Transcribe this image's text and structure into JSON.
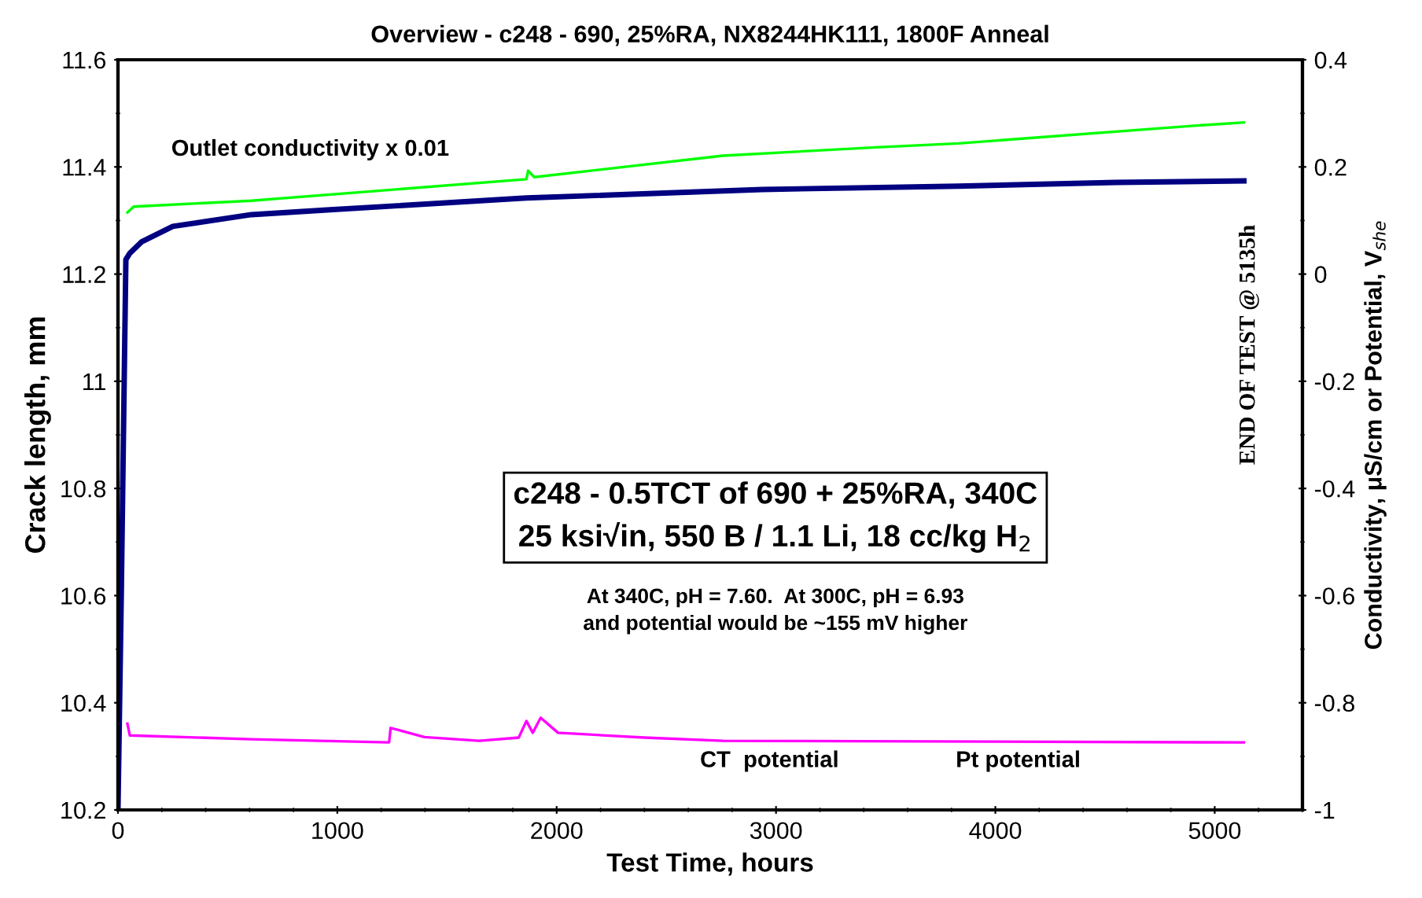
{
  "chart_data": {
    "type": "line",
    "title": "Overview - c248 - 690, 25%RA, NX8244HK111, 1800F Anneal",
    "xlabel": "Test Time, hours",
    "ylabel": "Crack length, mm",
    "y2label": "Conductivity, μS/cm or Potential, V$_{she}$",
    "xlim": [
      0,
      5400
    ],
    "xticks": [
      0,
      1000,
      2000,
      3000,
      4000,
      5000
    ],
    "ylim": [
      10.2,
      11.6
    ],
    "yticks": [
      10.2,
      10.4,
      10.6,
      10.8,
      11,
      11.2,
      11.4,
      11.6
    ],
    "y2lim": [
      -1,
      0.4
    ],
    "y2ticks": [
      -1,
      -0.8,
      -0.6,
      -0.4,
      -0.2,
      0,
      0.2,
      0.4
    ],
    "grid": false,
    "marker": "none",
    "line_style": "solid",
    "series": [
      {
        "color": "#000080",
        "x": [
          0,
          15,
          30,
          36,
          54,
          107,
          250,
          609,
          967,
          1862,
          2937,
          3832,
          4549,
          5133
        ],
        "values": [
          10.2,
          10.6,
          11.05,
          11.227,
          11.239,
          11.26,
          11.289,
          11.311,
          11.32,
          11.342,
          11.358,
          11.364,
          11.371,
          11.374
        ]
      },
      {
        "color": "#00ff00",
        "axis": "y2",
        "x": [
          43,
          72,
          609,
          1862,
          1870,
          1898,
          2758,
          3474,
          3832,
          4907,
          5133
        ],
        "values": [
          0.115,
          0.126,
          0.137,
          0.177,
          0.193,
          0.181,
          0.221,
          0.237,
          0.244,
          0.277,
          0.283
        ]
      },
      {
        "color": "#ff00ff",
        "axis": "y2",
        "x": [
          43,
          54,
          609,
          1236,
          1243,
          1397,
          1648,
          1827,
          1862,
          1891,
          1927,
          2006,
          2400,
          2758,
          5133
        ],
        "values": [
          -0.839,
          -0.861,
          -0.868,
          -0.874,
          -0.847,
          -0.864,
          -0.871,
          -0.865,
          -0.834,
          -0.856,
          -0.828,
          -0.856,
          -0.865,
          -0.871,
          -0.874
        ]
      }
    ],
    "annotations": [
      "Outlet conductivity x 0.01",
      "c248 - 0.5TCT of 690 + 25%RA, 340C\n25 ksi√in, 550 B / 1.1 Li, 18 cc/kg H$_{2}$",
      "At 340C, pH = 7.60.  At 300C, pH = 6.93\nand potential would be ~155 mV higher",
      "CT  potential",
      "Pt potential",
      "END OF TEST @ 5135h"
    ]
  }
}
